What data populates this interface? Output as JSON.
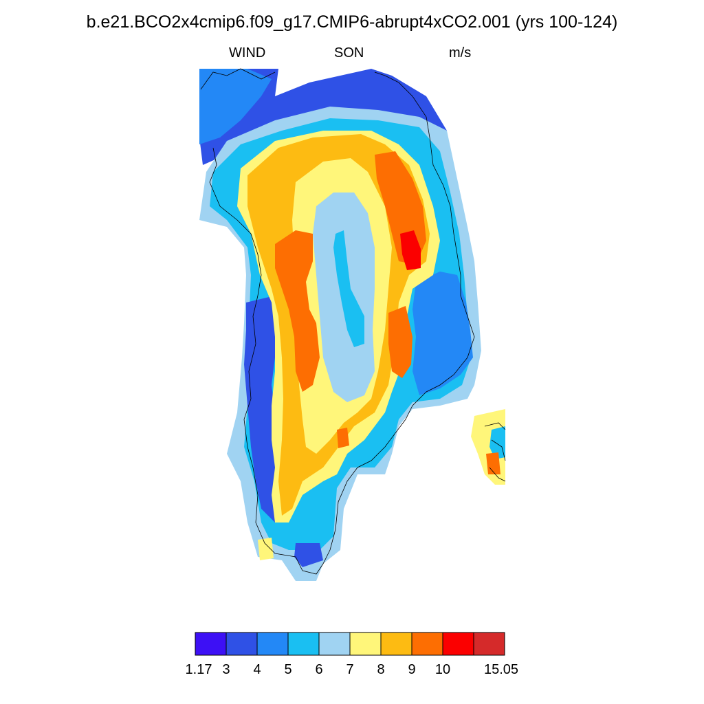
{
  "header": {
    "title": "b.e21.BCO2x4cmip6.f09_g17.CMIP6-abrupt4xCO2.001 (yrs 100-124)",
    "variable": "WIND",
    "season": "SON",
    "units": "m/s"
  },
  "colorbar": {
    "bins": [
      {
        "color": "#3d10f5"
      },
      {
        "color": "#2f51e6"
      },
      {
        "color": "#2388f6"
      },
      {
        "color": "#1abff2"
      },
      {
        "color": "#a0d3f2"
      },
      {
        "color": "#fff67a"
      },
      {
        "color": "#fdbb12"
      },
      {
        "color": "#fd6e02"
      },
      {
        "color": "#fb0000"
      },
      {
        "color": "#d52a2a"
      }
    ],
    "labels": [
      "1.17",
      "3",
      "4",
      "5",
      "6",
      "7",
      "8",
      "9",
      "10",
      "15.05"
    ]
  },
  "map_regions": [
    {
      "name": "far-north-band",
      "color": "#2f51e6"
    },
    {
      "name": "northwest-strip",
      "color": "#2388f6"
    },
    {
      "name": "outer-light-blue",
      "color": "#a0d3f2"
    },
    {
      "name": "outer-cyan",
      "color": "#1abff2"
    },
    {
      "name": "west-coast-blue",
      "color": "#2f51e6"
    },
    {
      "name": "east-coast-blue",
      "color": "#2388f6"
    },
    {
      "name": "ice-sheet-yellow",
      "color": "#fff67a"
    },
    {
      "name": "ice-sheet-orange",
      "color": "#fdbb12"
    },
    {
      "name": "interior-light-blue",
      "color": "#a0d3f2"
    },
    {
      "name": "interior-cyan",
      "color": "#1abff2"
    },
    {
      "name": "west-jet",
      "color": "#fd6e02"
    },
    {
      "name": "east-jet",
      "color": "#fd6e02"
    },
    {
      "name": "east-jet-core",
      "color": "#fb0000"
    },
    {
      "name": "iceland-patch",
      "color": "#fff67a"
    }
  ]
}
